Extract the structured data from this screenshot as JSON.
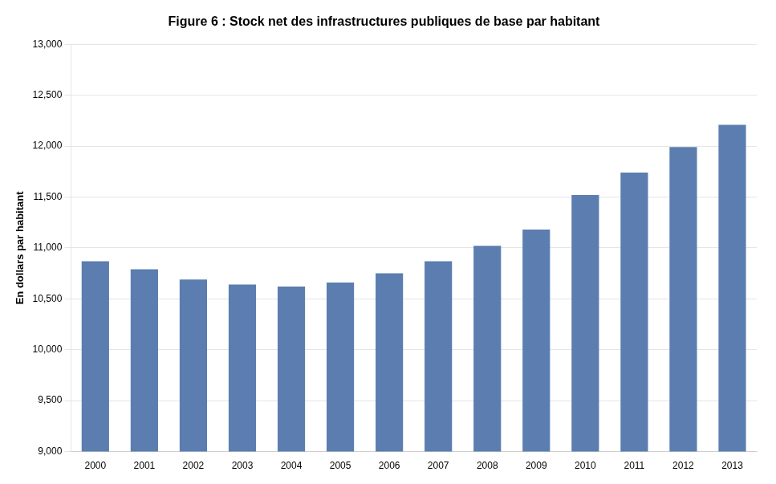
{
  "chart_data": {
    "type": "bar",
    "title": "Figure 6 : Stock net des infrastructures publiques de base par habitant",
    "ylabel": "En dollars par habitant",
    "categories": [
      "2000",
      "2001",
      "2002",
      "2003",
      "2004",
      "2005",
      "2006",
      "2007",
      "2008",
      "2009",
      "2010",
      "2011",
      "2012",
      "2013"
    ],
    "values": [
      10870,
      10790,
      10690,
      10640,
      10620,
      10660,
      10750,
      10870,
      11020,
      11180,
      11520,
      11740,
      11990,
      12210
    ],
    "color": "#5b7daf",
    "ylim": [
      9000,
      13000
    ],
    "yticks": [
      {
        "value": 9000,
        "label": "9,000"
      },
      {
        "value": 9500,
        "label": "9,500"
      },
      {
        "value": 10000,
        "label": "10,000"
      },
      {
        "value": 10500,
        "label": "10,500"
      },
      {
        "value": 11000,
        "label": "11,000"
      },
      {
        "value": 11500,
        "label": "11,500"
      },
      {
        "value": 12000,
        "label": "12,000"
      },
      {
        "value": 12500,
        "label": "12,500"
      },
      {
        "value": 13000,
        "label": "13,000"
      }
    ],
    "grid": true
  }
}
